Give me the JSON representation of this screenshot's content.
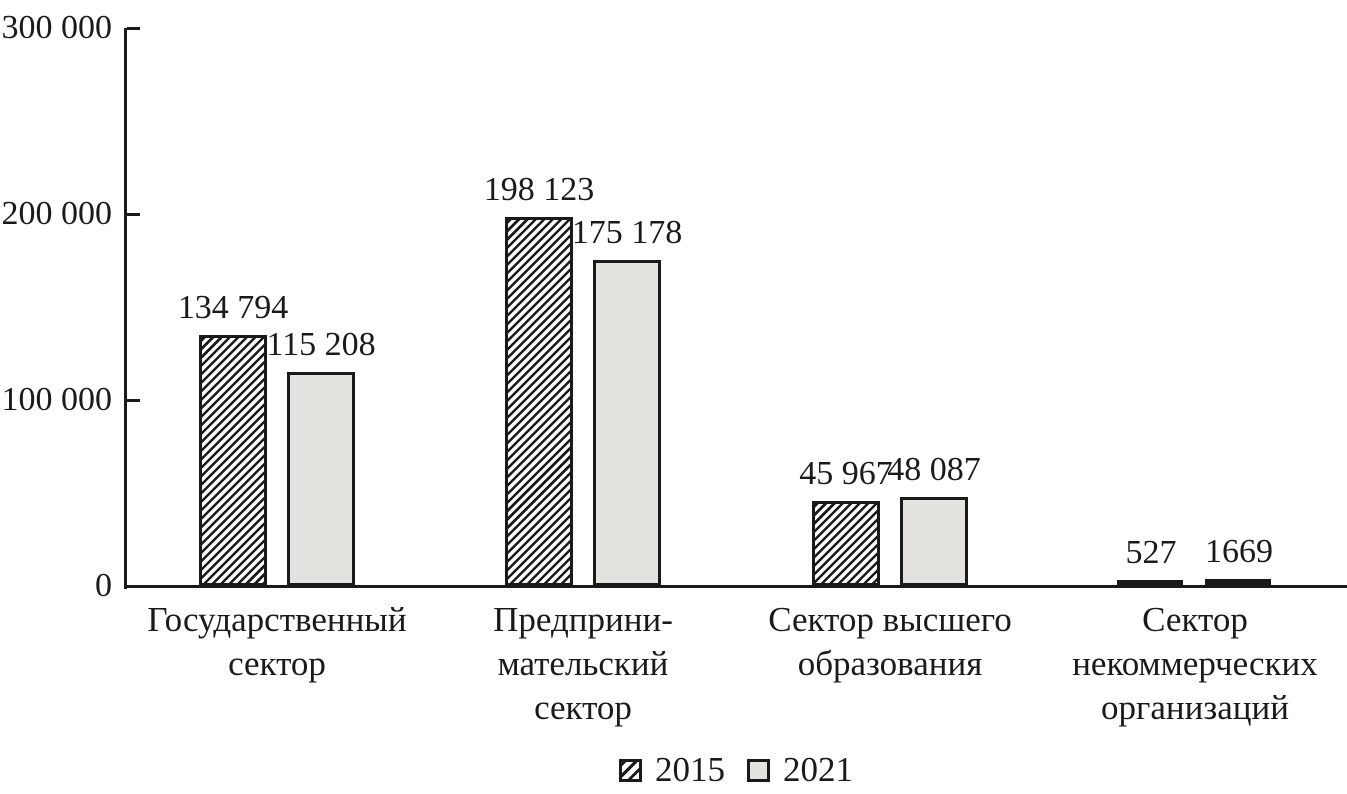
{
  "chart_data": {
    "type": "bar",
    "title": "",
    "xlabel": "",
    "ylabel": "",
    "ylim": [
      0,
      300000
    ],
    "grid": false,
    "legend_position": "bottom",
    "categories": [
      "Государственный сектор",
      "Предпринимательский сектор",
      "Сектор высшего образования",
      "Сектор некоммерческих организаций"
    ],
    "category_label_lines": [
      "Государственный\nсектор",
      "Предприни-\nмательский\nсектор",
      "Сектор высшего\nобразования",
      "Сектор\nнекоммерческих\nорганизаций"
    ],
    "series": [
      {
        "name": "2015",
        "swatch": "hatch",
        "values": [
          134794,
          198123,
          45967,
          527
        ]
      },
      {
        "name": "2021",
        "swatch": "solid",
        "values": [
          115208,
          175178,
          48087,
          1669
        ]
      }
    ],
    "value_labels": [
      [
        "134 794",
        "198 123",
        "45 967",
        "527"
      ],
      [
        "115 208",
        "175 178",
        "48 087",
        "1669"
      ]
    ],
    "yticks": [
      {
        "value": 300000,
        "label": "300 000"
      },
      {
        "value": 200000,
        "label": "200 000"
      },
      {
        "value": 100000,
        "label": "100 000"
      },
      {
        "value": 0,
        "label": "0"
      }
    ],
    "legend_items": [
      {
        "label": "2015",
        "swatch": "hatch"
      },
      {
        "label": "2021",
        "swatch": "solid"
      }
    ]
  },
  "colors": {
    "ink": "#1a1a1a",
    "fill_2021": "#e3e2df",
    "background": "#ffffff"
  }
}
